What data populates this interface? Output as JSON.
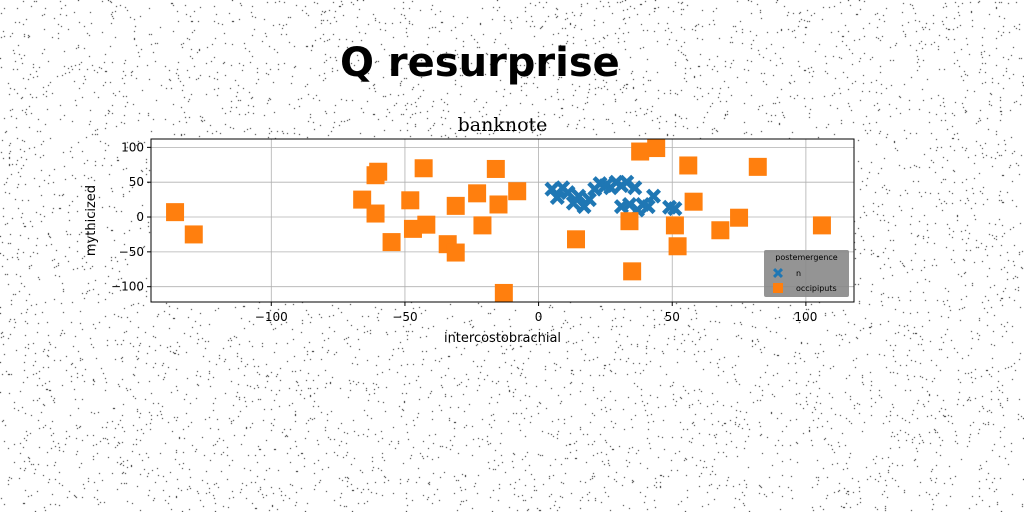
{
  "figure": {
    "suptitle": "Q resurprise"
  },
  "chart_data": {
    "type": "scatter",
    "title": "banknote",
    "xlabel": "intercostobrachial",
    "ylabel": "mythicized",
    "xlim": [
      -145,
      118
    ],
    "ylim": [
      -122,
      112
    ],
    "xticks": [
      -100,
      -50,
      0,
      50,
      100
    ],
    "yticks": [
      -100,
      -50,
      0,
      50,
      100
    ],
    "xtick_labels": [
      "−100",
      "−50",
      "0",
      "50",
      "100"
    ],
    "ytick_labels": [
      "−100",
      "−50",
      "0",
      "50",
      "100"
    ],
    "grid": true,
    "legend": {
      "title": "postemergence",
      "placement": "lower-right"
    },
    "series": [
      {
        "name": "n",
        "marker": "X",
        "color": "#1f77b4",
        "points": [
          [
            5,
            40
          ],
          [
            7,
            28
          ],
          [
            9,
            42
          ],
          [
            11,
            35
          ],
          [
            13,
            20
          ],
          [
            15,
            30
          ],
          [
            17,
            15
          ],
          [
            19,
            25
          ],
          [
            21,
            40
          ],
          [
            23,
            48
          ],
          [
            25,
            45
          ],
          [
            27,
            42
          ],
          [
            29,
            50
          ],
          [
            31,
            15
          ],
          [
            31,
            45
          ],
          [
            33,
            50
          ],
          [
            34,
            18
          ],
          [
            36,
            42
          ],
          [
            37,
            10
          ],
          [
            39,
            18
          ],
          [
            41,
            15
          ],
          [
            43,
            30
          ],
          [
            49,
            14
          ],
          [
            51,
            12
          ]
        ]
      },
      {
        "name": "occipiputs",
        "marker": "s",
        "color": "#ff7f0e",
        "points": [
          [
            -136,
            7
          ],
          [
            -129,
            -25
          ],
          [
            -66,
            25
          ],
          [
            -61,
            5
          ],
          [
            -61,
            60
          ],
          [
            -60,
            65
          ],
          [
            -55,
            -36
          ],
          [
            -48,
            24
          ],
          [
            -47,
            -17
          ],
          [
            -43,
            70
          ],
          [
            -42,
            -11
          ],
          [
            -34,
            -39
          ],
          [
            -31,
            16
          ],
          [
            -31,
            -51
          ],
          [
            -23,
            34
          ],
          [
            -21,
            -12
          ],
          [
            -16,
            69
          ],
          [
            -15,
            18
          ],
          [
            -13,
            -109
          ],
          [
            -8,
            37
          ],
          [
            14,
            -32
          ],
          [
            34,
            -6
          ],
          [
            35,
            -78
          ],
          [
            38,
            94
          ],
          [
            44,
            99
          ],
          [
            51,
            -12
          ],
          [
            52,
            -42
          ],
          [
            56,
            74
          ],
          [
            58,
            22
          ],
          [
            68,
            -19
          ],
          [
            75,
            -1
          ],
          [
            82,
            72
          ],
          [
            106,
            -12
          ]
        ]
      }
    ]
  }
}
